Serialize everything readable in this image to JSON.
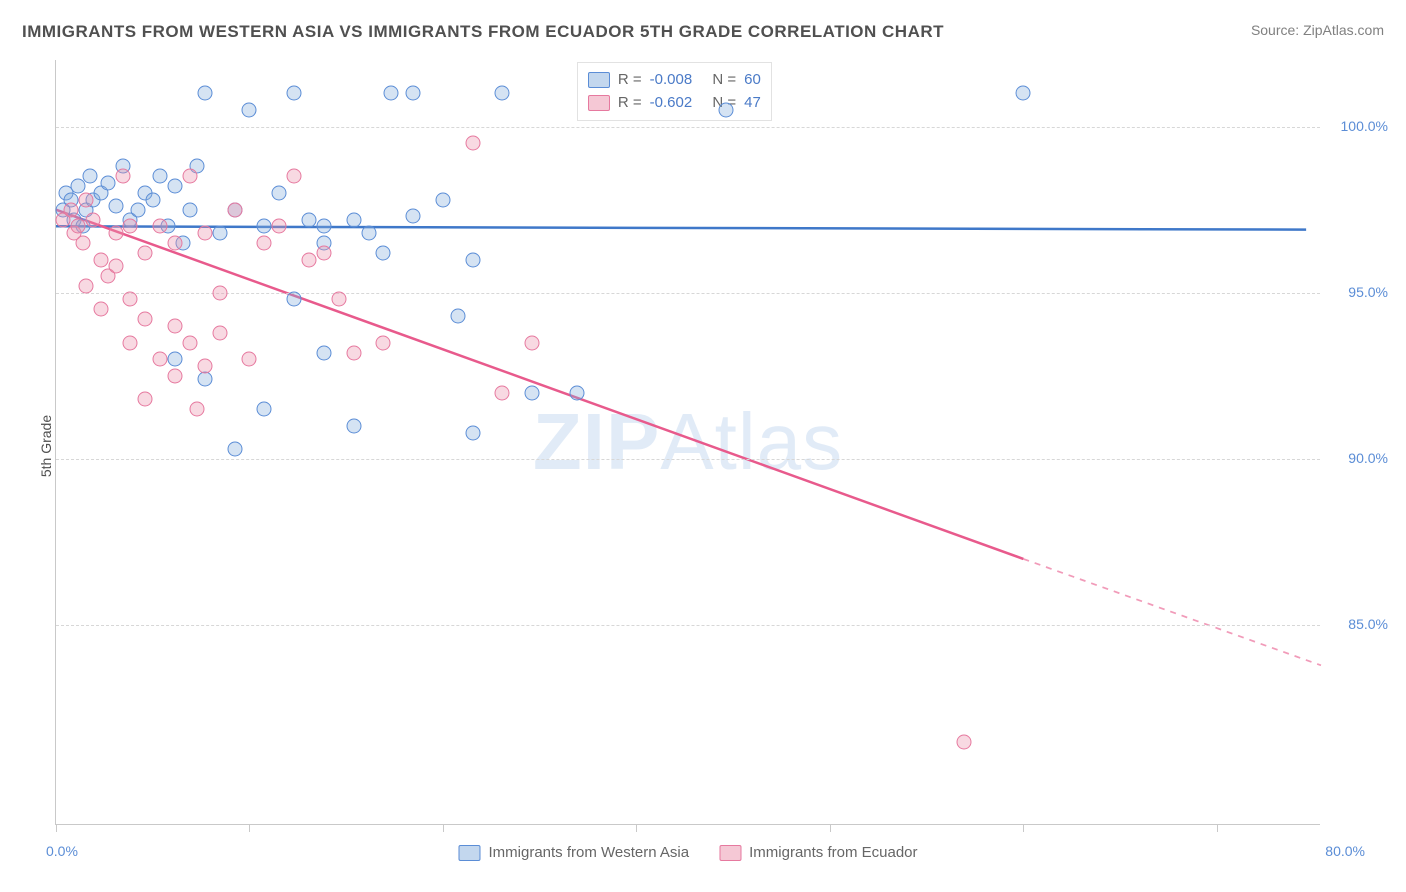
{
  "title": "IMMIGRANTS FROM WESTERN ASIA VS IMMIGRANTS FROM ECUADOR 5TH GRADE CORRELATION CHART",
  "source": "Source: ZipAtlas.com",
  "ylabel": "5th Grade",
  "watermark_bold": "ZIP",
  "watermark_thin": "Atlas",
  "chart": {
    "type": "scatter",
    "xlim": [
      0,
      85
    ],
    "ylim": [
      79,
      102
    ],
    "ytick_values": [
      85,
      90,
      95,
      100
    ],
    "ytick_labels": [
      "85.0%",
      "90.0%",
      "95.0%",
      "100.0%"
    ],
    "xtick_values": [
      0,
      13,
      26,
      39,
      52,
      65,
      78
    ],
    "xlabel_min": "0.0%",
    "xlabel_max": "80.0%",
    "grid_color": "#d7d7d7",
    "background_color": "#ffffff",
    "axis_color": "#c9c9c9"
  },
  "series": [
    {
      "name": "Immigrants from Western Asia",
      "color_fill": "rgba(135,176,222,0.35)",
      "color_stroke": "#5b8dd6",
      "marker_size": 15,
      "R": "-0.008",
      "N": "60",
      "trend": {
        "x1": 0,
        "y1": 97.0,
        "x2": 84,
        "y2": 96.9,
        "stroke": "#3f78c9",
        "width": 2.5
      },
      "points": [
        [
          0.5,
          97.5
        ],
        [
          0.7,
          98.0
        ],
        [
          1.0,
          97.8
        ],
        [
          1.2,
          97.2
        ],
        [
          1.5,
          98.2
        ],
        [
          1.8,
          97.0
        ],
        [
          2.0,
          97.5
        ],
        [
          2.3,
          98.5
        ],
        [
          2.5,
          97.8
        ],
        [
          3.0,
          98.0
        ],
        [
          3.5,
          98.3
        ],
        [
          4.0,
          97.6
        ],
        [
          4.5,
          98.8
        ],
        [
          5.0,
          97.2
        ],
        [
          5.5,
          97.5
        ],
        [
          6.0,
          98.0
        ],
        [
          6.5,
          97.8
        ],
        [
          7.0,
          98.5
        ],
        [
          7.5,
          97.0
        ],
        [
          8.0,
          98.2
        ],
        [
          8.5,
          96.5
        ],
        [
          9.0,
          97.5
        ],
        [
          9.5,
          98.8
        ],
        [
          10.0,
          101.0
        ],
        [
          11.0,
          96.8
        ],
        [
          12.0,
          97.5
        ],
        [
          13.0,
          100.5
        ],
        [
          14.0,
          97.0
        ],
        [
          15.0,
          98.0
        ],
        [
          16.0,
          101.0
        ],
        [
          17.0,
          97.2
        ],
        [
          18.0,
          96.5
        ],
        [
          8.0,
          93.0
        ],
        [
          10.0,
          92.4
        ],
        [
          12.0,
          90.3
        ],
        [
          14.0,
          91.5
        ],
        [
          16.0,
          94.8
        ],
        [
          18.0,
          93.2
        ],
        [
          20.0,
          91.0
        ],
        [
          21.0,
          96.8
        ],
        [
          22.5,
          101.0
        ],
        [
          24.0,
          97.3
        ],
        [
          27.0,
          94.3
        ],
        [
          28.0,
          90.8
        ],
        [
          18.0,
          97.0
        ],
        [
          20.0,
          97.2
        ],
        [
          22.0,
          96.2
        ],
        [
          24.0,
          101.0
        ],
        [
          26.0,
          97.8
        ],
        [
          28.0,
          96.0
        ],
        [
          30.0,
          101.0
        ],
        [
          32.0,
          92.0
        ],
        [
          35.0,
          92.0
        ],
        [
          45.0,
          100.5
        ],
        [
          65.0,
          101.0
        ]
      ]
    },
    {
      "name": "Immigrants from Ecuador",
      "color_fill": "rgba(235,145,172,0.35)",
      "color_stroke": "#e6799f",
      "marker_size": 15,
      "R": "-0.602",
      "N": "47",
      "trend": {
        "x1": 0,
        "y1": 97.5,
        "x2": 65,
        "y2": 87.0,
        "stroke": "#e85a8c",
        "width": 2.5,
        "dash_x2": 85,
        "dash_y2": 83.8
      },
      "points": [
        [
          0.5,
          97.2
        ],
        [
          1.0,
          97.5
        ],
        [
          1.2,
          96.8
        ],
        [
          1.5,
          97.0
        ],
        [
          1.8,
          96.5
        ],
        [
          2.0,
          97.8
        ],
        [
          2.5,
          97.2
        ],
        [
          3.0,
          96.0
        ],
        [
          3.5,
          95.5
        ],
        [
          4.0,
          96.8
        ],
        [
          4.5,
          98.5
        ],
        [
          5.0,
          97.0
        ],
        [
          2.0,
          95.2
        ],
        [
          3.0,
          94.5
        ],
        [
          4.0,
          95.8
        ],
        [
          5.0,
          94.8
        ],
        [
          6.0,
          96.2
        ],
        [
          7.0,
          97.0
        ],
        [
          8.0,
          96.5
        ],
        [
          9.0,
          98.5
        ],
        [
          10.0,
          96.8
        ],
        [
          5.0,
          93.5
        ],
        [
          6.0,
          94.2
        ],
        [
          7.0,
          93.0
        ],
        [
          8.0,
          94.0
        ],
        [
          9.0,
          93.5
        ],
        [
          10.0,
          92.8
        ],
        [
          11.0,
          95.0
        ],
        [
          12.0,
          97.5
        ],
        [
          6.0,
          91.8
        ],
        [
          8.0,
          92.5
        ],
        [
          9.5,
          91.5
        ],
        [
          11.0,
          93.8
        ],
        [
          13.0,
          93.0
        ],
        [
          14.0,
          96.5
        ],
        [
          15.0,
          97.0
        ],
        [
          16.0,
          98.5
        ],
        [
          17.0,
          96.0
        ],
        [
          18.0,
          96.2
        ],
        [
          19.0,
          94.8
        ],
        [
          20.0,
          93.2
        ],
        [
          22.0,
          93.5
        ],
        [
          28.0,
          99.5
        ],
        [
          30.0,
          92.0
        ],
        [
          32.0,
          93.5
        ],
        [
          61.0,
          81.5
        ]
      ]
    }
  ],
  "legend_inchart": {
    "r_label": "R =",
    "n_label": "N ="
  },
  "bottom_legend": [
    {
      "swatch": "blue",
      "label": "Immigrants from Western Asia"
    },
    {
      "swatch": "pink",
      "label": "Immigrants from Ecuador"
    }
  ]
}
